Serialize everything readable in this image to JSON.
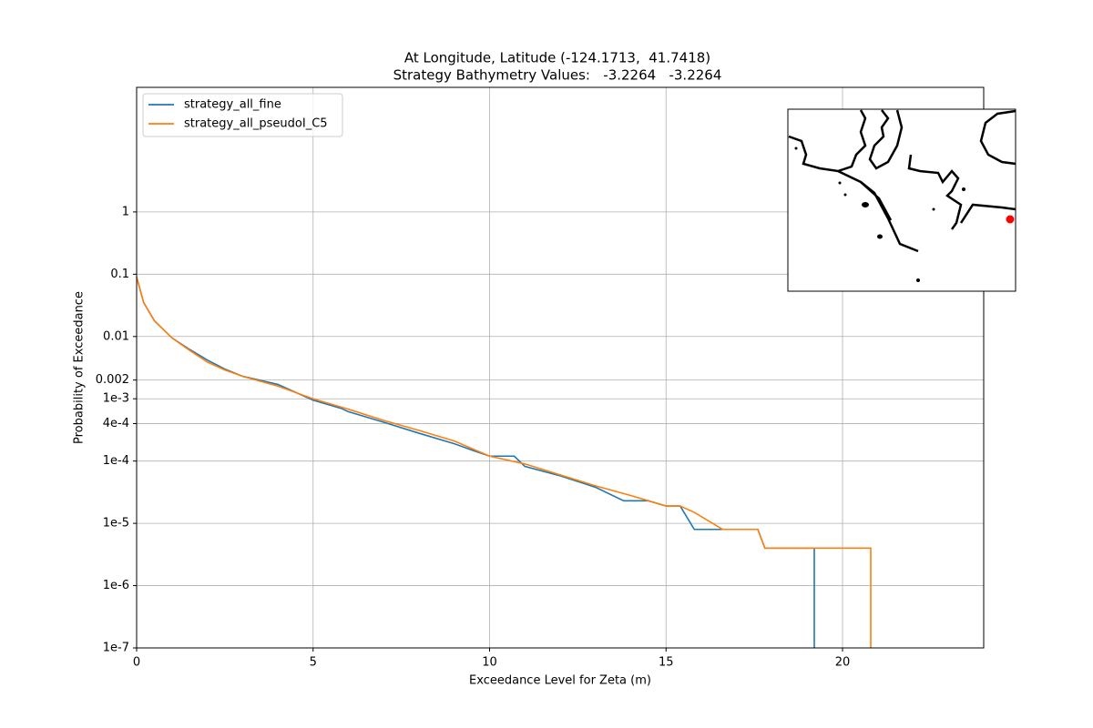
{
  "chart_data": {
    "type": "line",
    "title": "At Longitude, Latitude (-124.1713,  41.7418)",
    "subtitle": "Strategy Bathymetry Values:   -3.2264   -3.2264",
    "x_label": "Exceedance Level for Zeta (m)",
    "y_label": "Probability of Exceedance",
    "xlim": [
      0,
      24
    ],
    "xticks": [
      0,
      5,
      10,
      15,
      20
    ],
    "ylim": [
      1e-07,
      100
    ],
    "y_log": true,
    "yticks": [
      {
        "value": 1e-07,
        "label": "1e-7"
      },
      {
        "value": 1e-06,
        "label": "1e-6"
      },
      {
        "value": 1e-05,
        "label": "1e-5"
      },
      {
        "value": 0.0001,
        "label": "1e-4"
      },
      {
        "value": 0.0004,
        "label": "4e-4"
      },
      {
        "value": 0.001,
        "label": "1e-3"
      },
      0.002,
      0.01,
      0.1,
      1
    ],
    "grid": true,
    "legend": "upper left",
    "series": [
      {
        "name": "strategy_all_fine",
        "color": "#1f77b4",
        "x": [
          0,
          0.2,
          0.5,
          1,
          1.5,
          2,
          2.5,
          3,
          4,
          5,
          5.8,
          6,
          7,
          8,
          9,
          9.5,
          10,
          10.7,
          11,
          12,
          13,
          13.8,
          14.5,
          15,
          15.4,
          15.8,
          16.6,
          17.6,
          17.8,
          19.2,
          19.2
        ],
        "values": [
          0.09,
          0.035,
          0.018,
          0.0095,
          0.0062,
          0.0042,
          0.003,
          0.0023,
          0.0017,
          0.00095,
          0.0007,
          0.00062,
          0.00042,
          0.00028,
          0.00019,
          0.00015,
          0.00012,
          0.00012,
          8.2e-05,
          5.8e-05,
          3.8e-05,
          2.3e-05,
          2.3e-05,
          1.9e-05,
          1.9e-05,
          8e-06,
          8e-06,
          8e-06,
          4e-06,
          4e-06,
          1e-07
        ]
      },
      {
        "name": "strategy_all_pseudoI_C5",
        "color": "#ff7f0e",
        "x": [
          0,
          0.2,
          0.5,
          1,
          1.5,
          2,
          2.5,
          3,
          4,
          5,
          6,
          7,
          8,
          9,
          10,
          11,
          12,
          13,
          14,
          15,
          15.4,
          15.8,
          16.2,
          16.6,
          17.6,
          17.8,
          20.8,
          20.8
        ],
        "values": [
          0.09,
          0.035,
          0.018,
          0.0095,
          0.006,
          0.0039,
          0.0029,
          0.0023,
          0.0016,
          0.001,
          0.00068,
          0.00045,
          0.00031,
          0.00021,
          0.00012,
          9e-05,
          6e-05,
          4e-05,
          2.8e-05,
          1.9e-05,
          1.9e-05,
          1.5e-05,
          1.1e-05,
          8e-06,
          8e-06,
          4e-06,
          4e-06,
          1e-07
        ]
      }
    ]
  }
}
